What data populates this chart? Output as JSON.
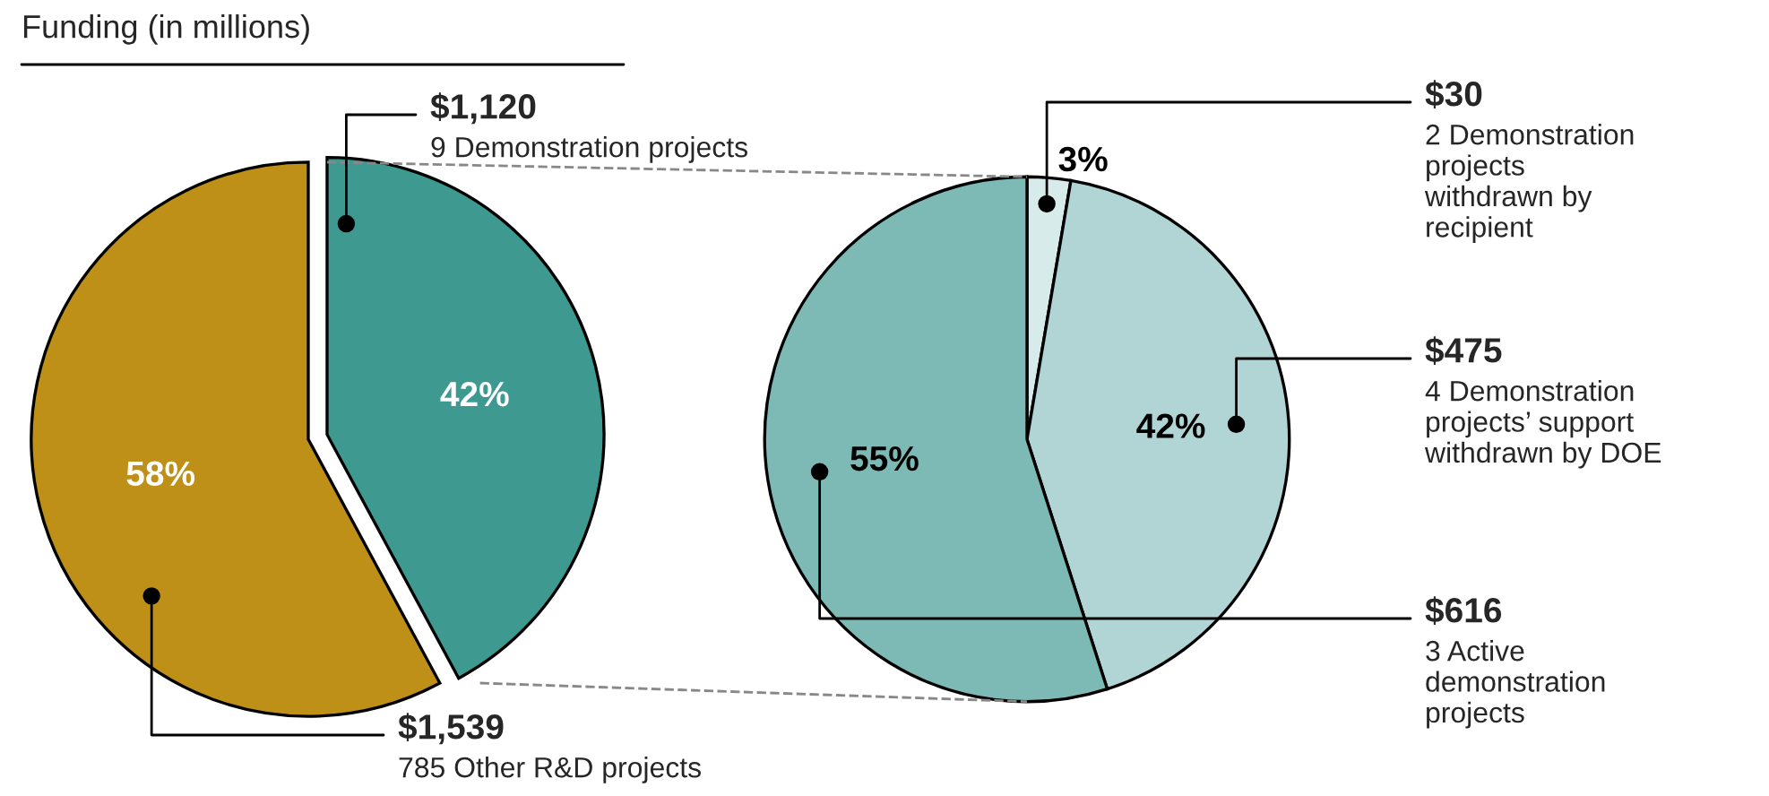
{
  "chart_data": [
    {
      "type": "pie",
      "title": "Funding (in millions)",
      "categories": [
        "9 Demonstration projects",
        "785 Other R&D projects"
      ],
      "values": [
        1120,
        1539
      ],
      "colors": [
        "#3e9a91",
        "#bf9017"
      ],
      "value_labels": [
        "$1,120",
        "$1,539"
      ],
      "annotations": [
        {
          "text": "42%",
          "x": "9 Demonstration projects"
        },
        {
          "text": "58%",
          "x": "785 Other R&D projects"
        }
      ]
    },
    {
      "type": "pie",
      "categories": [
        "2 Demonstration\nprojects\nwithdrawn by\nrecipient",
        "4 Demonstration\nprojects’ support\nwithdrawn by DOE",
        "3 Active\ndemonstration\nprojects"
      ],
      "values": [
        30,
        475,
        616
      ],
      "colors": [
        "#d6ebea",
        "#b1d5d4",
        "#7ebab5"
      ],
      "value_labels": [
        "$30",
        "$475",
        "$616"
      ],
      "annotations": [
        {
          "text": "3%",
          "x": "2 Demonstration\nprojects\nwithdrawn by\nrecipient"
        },
        {
          "text": "42%",
          "x": "4 Demonstration\nprojects’ support\nwithdrawn by DOE"
        },
        {
          "text": "55%",
          "x": "3 Active\ndemonstration\nprojects"
        }
      ]
    }
  ]
}
